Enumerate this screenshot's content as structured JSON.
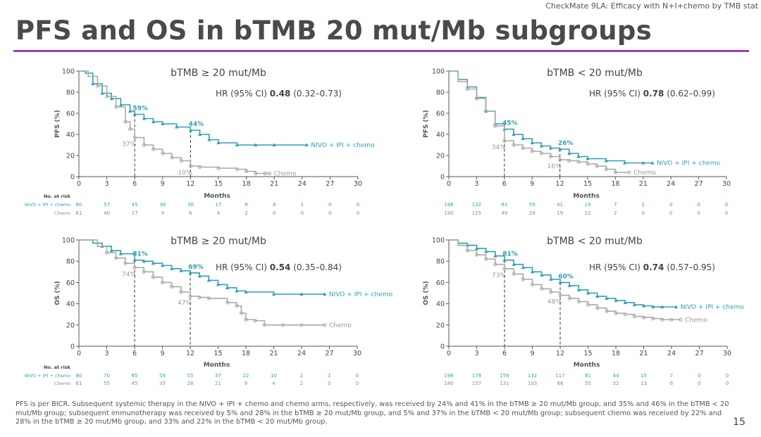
{
  "header": {
    "context_title": "CheckMate 9LA: Efficacy with N+I+chemo by TMB stat",
    "title": "PFS and OS in bTMB 20 mut/Mb subgroups",
    "page_number": "15"
  },
  "footnote": "PFS is per BICR. Subsequent systemic therapy in the NIVO + IPI + chemo and chemo arms, respectively, was received by 24% and 41% in the bTMB ≥ 20 mut/Mb group, and 35% and 46% in the bTMB < 20 mut/Mb group; subsequent immunotherapy was received by 5% and 28% in the bTMB ≥ 20 mut/Mb group, and 5% and 37% in the bTMB < 20 mut/Mb group; subsequent chemo was received by 22% and 28% in the bTMB ≥ 20 mut/Mb group, and 33% and 22% in the bTMB < 20 mut/Mb group.",
  "colors": {
    "nivo": "#2f9fb6",
    "chemo": "#a9a9a9",
    "accent_rule": "#9b3cc0"
  },
  "chart_data": [
    {
      "type": "line",
      "title": "bTMB ≥ 20 mut/Mb",
      "ylabel": "PFS (%)",
      "xlabel": "Months",
      "hr_label": "HR (95% CI)",
      "hr_value": "0.48",
      "hr_ci": "(0.32–0.73)",
      "xlim": [
        0,
        30
      ],
      "ylim": [
        0,
        100
      ],
      "xticks": [
        0,
        3,
        6,
        9,
        12,
        15,
        18,
        21,
        24,
        27,
        30
      ],
      "yticks": [
        0,
        20,
        40,
        60,
        80,
        100
      ],
      "landmarks": [
        6,
        12
      ],
      "series": [
        {
          "name": "NIVO + IPI + chemo",
          "key": "nivo",
          "x": [
            0,
            0.7,
            1.5,
            2.5,
            3.5,
            4.5,
            5.5,
            6,
            7,
            8,
            9,
            10.5,
            12,
            13,
            14,
            15,
            17,
            19,
            21,
            24.5
          ],
          "y": [
            100,
            98,
            88,
            79,
            74,
            68,
            62,
            59,
            55,
            52,
            50,
            47,
            44,
            40,
            35,
            32,
            30,
            30,
            30,
            30
          ],
          "labels": [
            {
              "x": 6,
              "y": 59,
              "text": "59%"
            },
            {
              "x": 12,
              "y": 44,
              "text": "44%"
            }
          ]
        },
        {
          "name": "Chemo",
          "key": "chemo",
          "x": [
            0,
            1,
            2,
            3,
            4,
            5,
            5.5,
            6,
            7,
            8,
            9,
            10,
            11,
            12,
            13,
            15,
            17,
            18,
            19,
            20,
            20.5
          ],
          "y": [
            100,
            95,
            86,
            76,
            66,
            52,
            45,
            37,
            30,
            26,
            22,
            18,
            15,
            10,
            9,
            8,
            7,
            5,
            3,
            3,
            3
          ],
          "labels": [
            {
              "x": 6,
              "y": 37,
              "text": "37%"
            },
            {
              "x": 12,
              "y": 10,
              "text": "10%"
            }
          ]
        }
      ],
      "risk_table": {
        "header": "No. at risk",
        "rows": [
          {
            "label": "NIVO + IPI + chemo",
            "values": [
              "80",
              "57",
              "45",
              "38",
              "30",
              "17",
              "8",
              "4",
              "1",
              "0",
              "0"
            ]
          },
          {
            "label": "Chemo",
            "values": [
              "61",
              "40",
              "17",
              "9",
              "6",
              "4",
              "2",
              "0",
              "0",
              "0",
              "0"
            ]
          }
        ]
      }
    },
    {
      "type": "line",
      "title": "bTMB < 20 mut/Mb",
      "ylabel": "PFS (%)",
      "xlabel": "Months",
      "hr_label": "HR (95% CI)",
      "hr_value": "0.78",
      "hr_ci": "(0.62–0.99)",
      "xlim": [
        0,
        30
      ],
      "ylim": [
        0,
        100
      ],
      "xticks": [
        0,
        3,
        6,
        9,
        12,
        15,
        18,
        21,
        24,
        27,
        30
      ],
      "yticks": [
        0,
        20,
        40,
        60,
        80,
        100
      ],
      "landmarks": [
        6,
        12
      ],
      "series": [
        {
          "name": "NIVO + IPI + chemo",
          "key": "nivo",
          "x": [
            0,
            1,
            2,
            3,
            4,
            5,
            6,
            7,
            8,
            9,
            10,
            11,
            12,
            13,
            14,
            15,
            17,
            19,
            21,
            22
          ],
          "y": [
            100,
            92,
            85,
            75,
            62,
            50,
            45,
            40,
            36,
            32,
            29,
            27,
            26,
            22,
            19,
            17,
            15,
            13,
            13,
            13
          ],
          "labels": [
            {
              "x": 6,
              "y": 45,
              "text": "45%"
            },
            {
              "x": 12,
              "y": 26,
              "text": "26%"
            }
          ]
        },
        {
          "name": "Chemo",
          "key": "chemo",
          "x": [
            0,
            1,
            2,
            3,
            4,
            5,
            6,
            7,
            8,
            9,
            10,
            11,
            12,
            13,
            14,
            15,
            16,
            17,
            18,
            19.5
          ],
          "y": [
            100,
            90,
            83,
            74,
            62,
            48,
            34,
            30,
            27,
            24,
            22,
            19,
            16,
            15,
            14,
            12,
            10,
            7,
            4,
            4
          ],
          "labels": [
            {
              "x": 6,
              "y": 34,
              "text": "34%"
            },
            {
              "x": 12,
              "y": 16,
              "text": "16%"
            }
          ]
        }
      ],
      "risk_table": {
        "header": "",
        "rows": [
          {
            "label": "",
            "values": [
              "196",
              "132",
              "81",
              "59",
              "41",
              "19",
              "7",
              "2",
              "0",
              "0",
              "0"
            ]
          },
          {
            "label": "",
            "values": [
              "180",
              "115",
              "49",
              "29",
              "19",
              "12",
              "2",
              "0",
              "0",
              "0",
              "0"
            ]
          }
        ]
      }
    },
    {
      "type": "line",
      "title": "bTMB ≥ 20 mut/Mb",
      "ylabel": "OS (%)",
      "xlabel": "Months",
      "hr_label": "HR (95% CI)",
      "hr_value": "0.54",
      "hr_ci": "(0.35–0.84)",
      "xlim": [
        0,
        30
      ],
      "ylim": [
        0,
        100
      ],
      "xticks": [
        0,
        3,
        6,
        9,
        12,
        15,
        18,
        21,
        24,
        27,
        30
      ],
      "yticks": [
        0,
        20,
        40,
        60,
        80,
        100
      ],
      "landmarks": [
        6,
        12
      ],
      "series": [
        {
          "name": "NIVO + IPI + chemo",
          "key": "nivo",
          "x": [
            0,
            1.5,
            2.5,
            3.5,
            4.5,
            6,
            7,
            8,
            9,
            10,
            11,
            12,
            13,
            14,
            15,
            16,
            17,
            18,
            21,
            24,
            26.5
          ],
          "y": [
            100,
            97,
            94,
            90,
            87,
            81,
            80,
            78,
            76,
            73,
            71,
            69,
            66,
            62,
            58,
            55,
            52,
            51,
            49,
            49,
            49
          ],
          "labels": [
            {
              "x": 6,
              "y": 81,
              "text": "81%"
            },
            {
              "x": 12,
              "y": 69,
              "text": "69%"
            }
          ]
        },
        {
          "name": "Chemo",
          "key": "chemo",
          "x": [
            0,
            2,
            3,
            4,
            5,
            6,
            7,
            8,
            9,
            10,
            11,
            12,
            13,
            14,
            16,
            17,
            17.5,
            18,
            19,
            20,
            22,
            24,
            26.5
          ],
          "y": [
            100,
            94,
            88,
            83,
            78,
            74,
            70,
            65,
            60,
            56,
            51,
            47,
            46,
            45,
            41,
            38,
            31,
            25,
            24,
            20,
            20,
            20,
            20
          ],
          "labels": [
            {
              "x": 6,
              "y": 74,
              "text": "74%"
            },
            {
              "x": 12,
              "y": 47,
              "text": "47%"
            }
          ]
        }
      ],
      "risk_table": {
        "header": "No. at risk",
        "rows": [
          {
            "label": "NIVO + IPI + chemo",
            "values": [
              "80",
              "70",
              "65",
              "59",
              "55",
              "37",
              "22",
              "10",
              "2",
              "1",
              "0"
            ]
          },
          {
            "label": "Chemo",
            "values": [
              "61",
              "55",
              "45",
              "35",
              "28",
              "21",
              "9",
              "4",
              "2",
              "0",
              "0"
            ]
          }
        ]
      }
    },
    {
      "type": "line",
      "title": "bTMB < 20 mut/Mb",
      "ylabel": "OS (%)",
      "xlabel": "Months",
      "hr_label": "HR (95% CI)",
      "hr_value": "0.74",
      "hr_ci": "(0.57–0.95)",
      "xlim": [
        0,
        30
      ],
      "ylim": [
        0,
        100
      ],
      "xticks": [
        0,
        3,
        6,
        9,
        12,
        15,
        18,
        21,
        24,
        27,
        30
      ],
      "yticks": [
        0,
        20,
        40,
        60,
        80,
        100
      ],
      "landmarks": [
        6,
        12
      ],
      "series": [
        {
          "name": "NIVO + IPI + chemo",
          "key": "nivo",
          "x": [
            0,
            1,
            2,
            3,
            4,
            5,
            6,
            7,
            8,
            9,
            10,
            11,
            12,
            13,
            14,
            15,
            16,
            17,
            18,
            19,
            20,
            21,
            22,
            23,
            24.5
          ],
          "y": [
            100,
            97,
            95,
            92,
            89,
            85,
            81,
            77,
            74,
            70,
            67,
            63,
            60,
            57,
            53,
            50,
            47,
            45,
            43,
            41,
            39,
            38,
            37,
            37,
            37
          ],
          "labels": [
            {
              "x": 6,
              "y": 81,
              "text": "81%"
            },
            {
              "x": 12,
              "y": 60,
              "text": "60%"
            }
          ]
        },
        {
          "name": "Chemo",
          "key": "chemo",
          "x": [
            0,
            1,
            2,
            3,
            4,
            5,
            6,
            7,
            8,
            9,
            10,
            11,
            12,
            13,
            14,
            15,
            16,
            17,
            18,
            19,
            20,
            21,
            22,
            23,
            24,
            25
          ],
          "y": [
            100,
            95,
            90,
            86,
            82,
            77,
            73,
            68,
            63,
            58,
            54,
            51,
            48,
            45,
            42,
            39,
            36,
            33,
            31,
            30,
            28,
            27,
            26,
            25,
            25,
            25
          ],
          "labels": [
            {
              "x": 6,
              "y": 73,
              "text": "73%"
            },
            {
              "x": 12,
              "y": 48,
              "text": "48%"
            }
          ]
        }
      ],
      "risk_table": {
        "header": "",
        "rows": [
          {
            "label": "",
            "values": [
              "196",
              "178",
              "159",
              "132",
              "117",
              "81",
              "44",
              "15",
              "7",
              "0",
              "0"
            ]
          },
          {
            "label": "",
            "values": [
              "180",
              "157",
              "131",
              "103",
              "86",
              "55",
              "32",
              "13",
              "6",
              "0",
              "0"
            ]
          }
        ]
      }
    }
  ]
}
